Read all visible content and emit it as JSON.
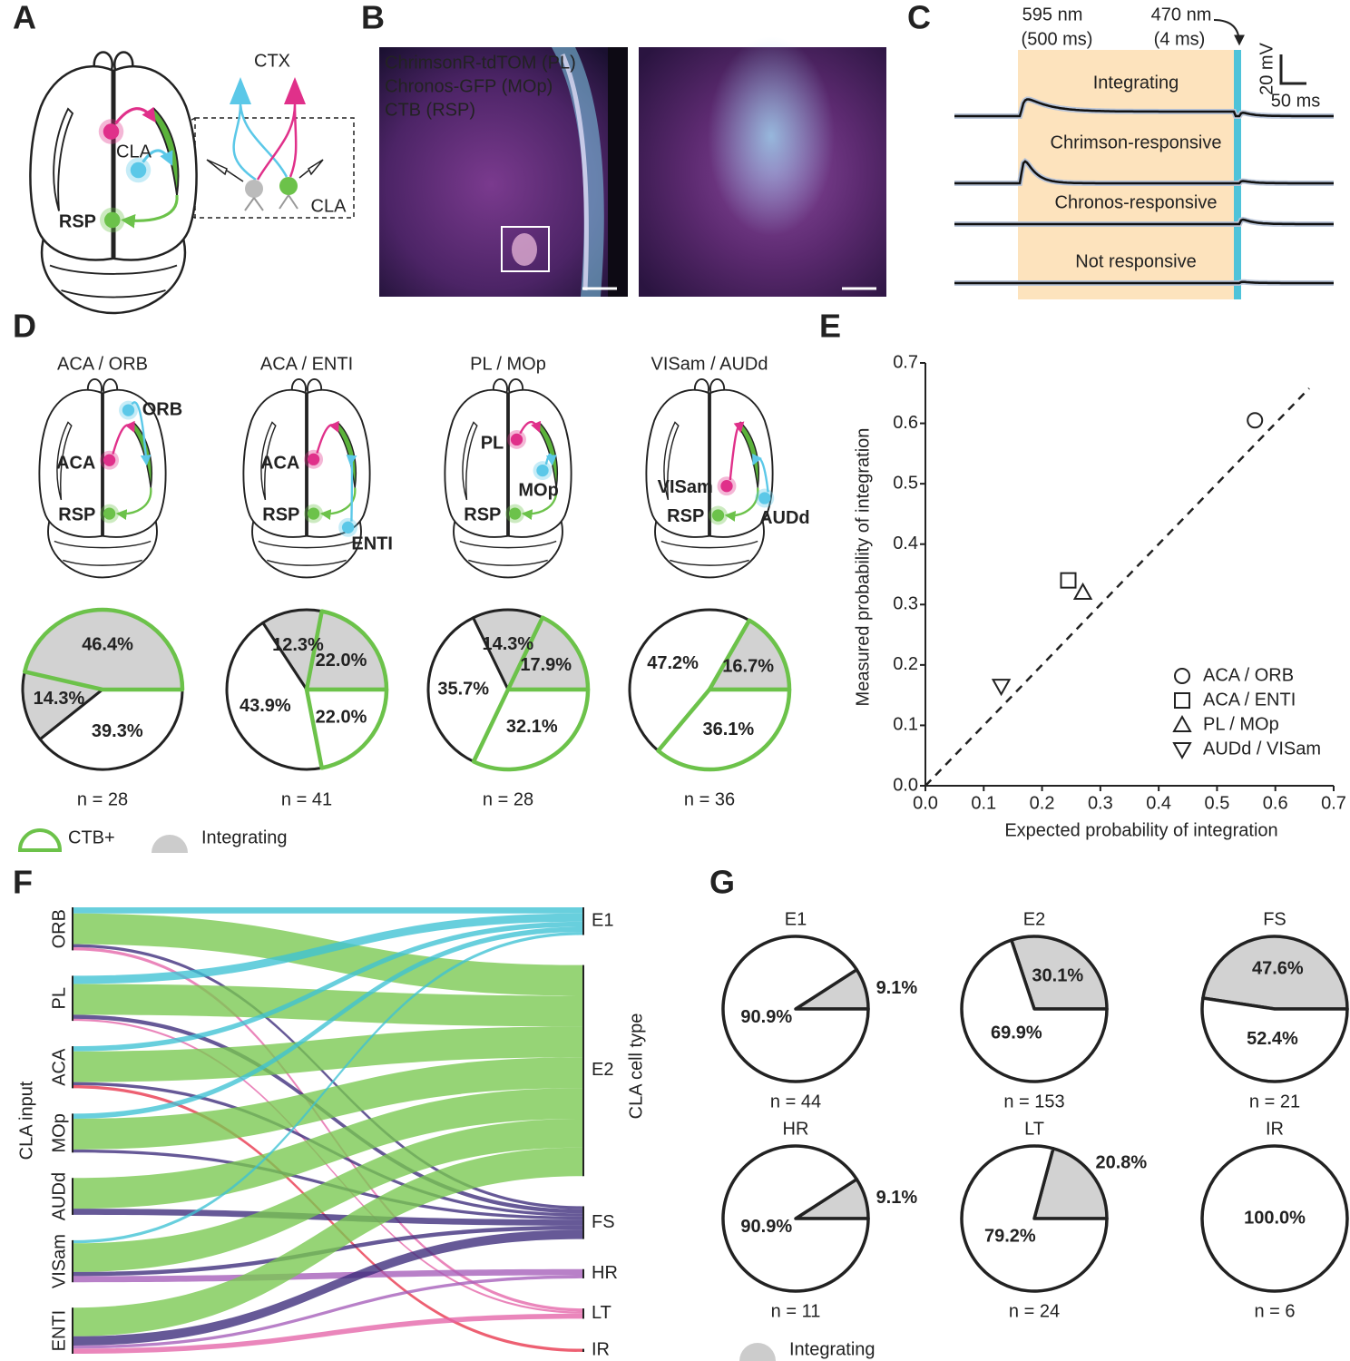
{
  "figure": {
    "panel_labels": [
      "A",
      "B",
      "C",
      "D",
      "E",
      "F",
      "G"
    ],
    "a": {
      "ctx": "CTX",
      "cla": "CLA",
      "rsp": "RSP",
      "inset_cla": "CLA"
    },
    "b": [
      "ChrimsonR-tdTOM (PL)",
      "Chronos-GFP (MOp)",
      "CTB (RSP)"
    ],
    "c": {
      "stim1": [
        "595 nm",
        "(500 ms)"
      ],
      "stim2": [
        "470 nm",
        "(4 ms)"
      ],
      "scale_y": "20 mV",
      "scale_x": "50 ms",
      "traces": [
        "Integrating",
        "Chrimson-responsive",
        "Chronos-responsive",
        "Not responsive"
      ]
    },
    "d_legend": [
      "CTB+",
      "Integrating"
    ],
    "g_legend": "Integrating"
  },
  "chart_data": [
    {
      "type": "pie",
      "title": "ACA / ORB",
      "regions": [
        {
          "name": "ORB",
          "color": "#5bc8e8"
        },
        {
          "name": "ACA",
          "color": "#e0308a"
        },
        {
          "name": "RSP",
          "color": "#6cc24a"
        }
      ],
      "values": [
        46.4,
        14.3,
        39.3
      ],
      "value_labels": [
        "46.4%",
        "14.3%",
        "39.3%"
      ],
      "integrating": [
        true,
        true,
        false
      ],
      "ctb": [
        true,
        false,
        false
      ],
      "n": "n = 28"
    },
    {
      "type": "pie",
      "title": "ACA / ENTI",
      "regions": [
        {
          "name": "ACA",
          "color": "#e0308a"
        },
        {
          "name": "RSP",
          "color": "#6cc24a"
        },
        {
          "name": "ENTI",
          "color": "#5bc8e8"
        }
      ],
      "values": [
        22.0,
        12.3,
        43.9,
        22.0
      ],
      "value_labels": [
        "22.0%",
        "12.3%",
        "43.9%",
        "22.0%"
      ],
      "integrating": [
        true,
        true,
        false,
        false
      ],
      "ctb": [
        true,
        false,
        false,
        true
      ],
      "n": "n = 41"
    },
    {
      "type": "pie",
      "title": "PL / MOp",
      "regions": [
        {
          "name": "PL",
          "color": "#e0308a"
        },
        {
          "name": "MOp",
          "color": "#5bc8e8"
        },
        {
          "name": "RSP",
          "color": "#6cc24a"
        }
      ],
      "values": [
        17.9,
        14.3,
        35.7,
        32.1
      ],
      "value_labels": [
        "17.9%",
        "14.3%",
        "35.7%",
        "32.1%"
      ],
      "integrating": [
        true,
        true,
        false,
        false
      ],
      "ctb": [
        true,
        false,
        false,
        true
      ],
      "n": "n = 28"
    },
    {
      "type": "pie",
      "title": "VISam / AUDd",
      "regions": [
        {
          "name": "VISam",
          "color": "#e0308a"
        },
        {
          "name": "RSP",
          "color": "#6cc24a"
        },
        {
          "name": "AUDd",
          "color": "#5bc8e8"
        }
      ],
      "values": [
        16.7,
        47.2,
        36.1
      ],
      "value_labels": [
        "16.7%",
        "47.2%",
        "36.1%"
      ],
      "integrating": [
        true,
        false,
        false
      ],
      "ctb": [
        true,
        false,
        true
      ],
      "n": "n = 36"
    },
    {
      "type": "scatter",
      "xlabel": "Expected probability of integration",
      "ylabel": "Measured probability of integration",
      "xlim": [
        0,
        0.7
      ],
      "ylim": [
        0,
        0.7
      ],
      "xticks": [
        {
          "value": 0,
          "label": "0.0"
        },
        0.1,
        0.2,
        0.3,
        0.4,
        0.5,
        0.6,
        0.7
      ],
      "yticks": [
        {
          "value": 0,
          "label": "0.0"
        },
        0.1,
        0.2,
        0.3,
        0.4,
        0.5,
        0.6,
        0.7
      ],
      "identity_line": true,
      "series": [
        {
          "name": "ACA / ORB",
          "marker": "circle",
          "x": [
            0.565
          ],
          "values": [
            0.605
          ]
        },
        {
          "name": "ACA / ENTI",
          "marker": "square",
          "x": [
            0.245
          ],
          "values": [
            0.34
          ]
        },
        {
          "name": "PL / MOp",
          "marker": "triangle",
          "x": [
            0.27
          ],
          "values": [
            0.32
          ]
        },
        {
          "name": "AUDd / VISam",
          "marker": "triangle-down",
          "x": [
            0.13
          ],
          "values": [
            0.165
          ]
        }
      ]
    },
    {
      "type": "sankey",
      "source_label": "CLA input",
      "target_label": "CLA cell type",
      "sources": [
        "ORB",
        "PL",
        "ACA",
        "MOp",
        "AUDd",
        "VISam",
        "ENTI"
      ],
      "targets": [
        {
          "name": "E1",
          "color": "#3ec1d3"
        },
        {
          "name": "E2",
          "color": "#78c850"
        },
        {
          "name": "FS",
          "color": "#3b2a7a"
        },
        {
          "name": "HR",
          "color": "#a45cb8"
        },
        {
          "name": "LT",
          "color": "#e464a8"
        },
        {
          "name": "IR",
          "color": "#e8334a"
        }
      ],
      "links": [
        {
          "source": 0,
          "target": 0,
          "value": 6
        },
        {
          "source": 0,
          "target": 1,
          "value": 30
        },
        {
          "source": 0,
          "target": 2,
          "value": 3
        },
        {
          "source": 0,
          "target": 4,
          "value": 3
        },
        {
          "source": 1,
          "target": 0,
          "value": 8
        },
        {
          "source": 1,
          "target": 1,
          "value": 30
        },
        {
          "source": 1,
          "target": 2,
          "value": 4
        },
        {
          "source": 1,
          "target": 4,
          "value": 2
        },
        {
          "source": 2,
          "target": 0,
          "value": 5
        },
        {
          "source": 2,
          "target": 1,
          "value": 30
        },
        {
          "source": 2,
          "target": 2,
          "value": 3
        },
        {
          "source": 2,
          "target": 5,
          "value": 3
        },
        {
          "source": 3,
          "target": 0,
          "value": 5
        },
        {
          "source": 3,
          "target": 1,
          "value": 30
        },
        {
          "source": 3,
          "target": 2,
          "value": 3
        },
        {
          "source": 4,
          "target": 1,
          "value": 30
        },
        {
          "source": 4,
          "target": 2,
          "value": 6
        },
        {
          "source": 5,
          "target": 0,
          "value": 3
        },
        {
          "source": 5,
          "target": 1,
          "value": 28
        },
        {
          "source": 5,
          "target": 2,
          "value": 4
        },
        {
          "source": 5,
          "target": 3,
          "value": 6
        },
        {
          "source": 6,
          "target": 1,
          "value": 28
        },
        {
          "source": 6,
          "target": 2,
          "value": 9
        },
        {
          "source": 6,
          "target": 3,
          "value": 3
        },
        {
          "source": 6,
          "target": 4,
          "value": 5
        }
      ]
    },
    {
      "type": "pie",
      "title": "E1",
      "color": "#3ec1d3",
      "values": [
        9.1,
        90.9
      ],
      "value_labels": [
        "9.1%",
        "90.9%"
      ],
      "integrating": [
        true,
        false
      ],
      "n": "n = 44"
    },
    {
      "type": "pie",
      "title": "E2",
      "color": "#6cc24a",
      "values": [
        30.1,
        69.9
      ],
      "value_labels": [
        "30.1%",
        "69.9%"
      ],
      "integrating": [
        true,
        false
      ],
      "n": "n = 153"
    },
    {
      "type": "pie",
      "title": "FS",
      "color": "#3b2a7a",
      "values": [
        47.6,
        52.4
      ],
      "value_labels": [
        "47.6%",
        "52.4%"
      ],
      "integrating": [
        true,
        false
      ],
      "n": "n = 21"
    },
    {
      "type": "pie",
      "title": "HR",
      "color": "#9b4fb5",
      "values": [
        9.1,
        90.9
      ],
      "value_labels": [
        "9.1%",
        "90.9%"
      ],
      "integrating": [
        true,
        false
      ],
      "n": "n = 11"
    },
    {
      "type": "pie",
      "title": "LT",
      "color": "#e05aa8",
      "values": [
        20.8,
        79.2
      ],
      "value_labels": [
        "20.8%",
        "79.2%"
      ],
      "integrating": [
        true,
        false
      ],
      "n": "n = 24"
    },
    {
      "type": "pie",
      "title": "IR",
      "color": "#e0283a",
      "values": [
        100.0
      ],
      "value_labels": [
        "100.0%"
      ],
      "integrating": [
        false
      ],
      "n": "n = 6"
    }
  ]
}
